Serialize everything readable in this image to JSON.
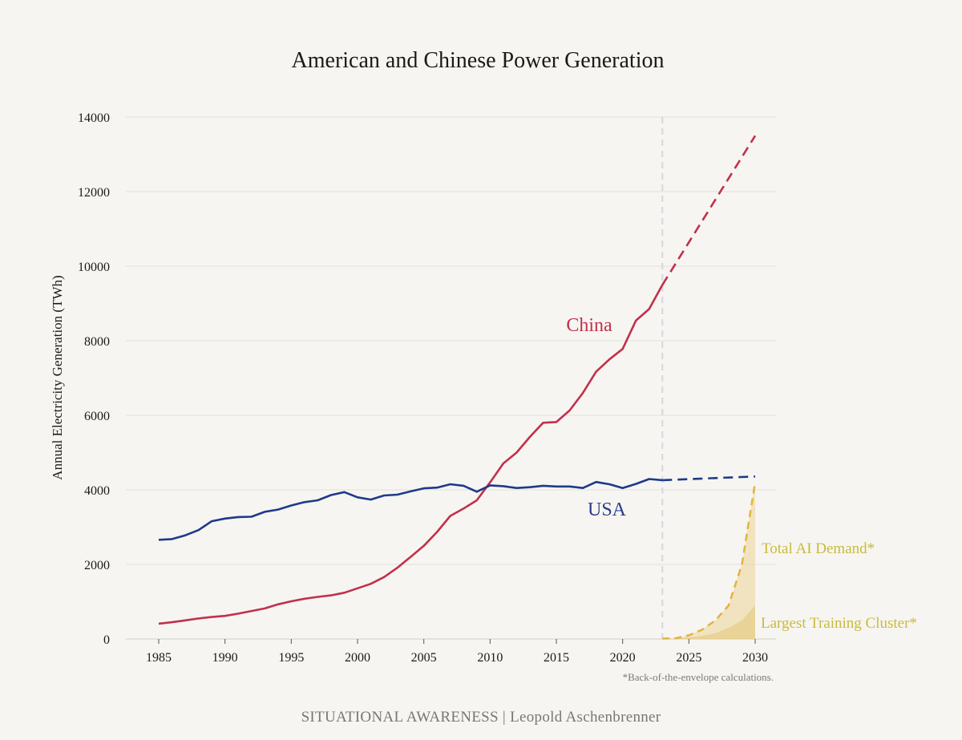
{
  "chart_data": {
    "type": "line",
    "title": "American and Chinese Power Generation",
    "ylabel": "Annual Electricity Generation (TWh)",
    "xlabel": "",
    "xlim": [
      1985,
      2030
    ],
    "ylim": [
      0,
      14000
    ],
    "xticks": [
      1985,
      1990,
      1995,
      2000,
      2005,
      2010,
      2015,
      2020,
      2025,
      2030
    ],
    "yticks": [
      0,
      2000,
      4000,
      6000,
      8000,
      10000,
      12000,
      14000
    ],
    "grid": "horizontal",
    "forecast_start": 2023,
    "series": [
      {
        "name": "China",
        "color": "#c2304b",
        "x": [
          1985,
          1986,
          1987,
          1988,
          1989,
          1990,
          1991,
          1992,
          1993,
          1994,
          1995,
          1996,
          1997,
          1998,
          1999,
          2000,
          2001,
          2002,
          2003,
          2004,
          2005,
          2006,
          2007,
          2008,
          2009,
          2010,
          2011,
          2012,
          2013,
          2014,
          2015,
          2016,
          2017,
          2018,
          2019,
          2020,
          2021,
          2022,
          2023
        ],
        "values": [
          410,
          450,
          500,
          550,
          590,
          620,
          680,
          750,
          820,
          930,
          1010,
          1080,
          1130,
          1170,
          1240,
          1360,
          1480,
          1660,
          1910,
          2200,
          2500,
          2870,
          3300,
          3500,
          3720,
          4200,
          4710,
          5000,
          5420,
          5800,
          5820,
          6130,
          6600,
          7170,
          7500,
          7780,
          8540,
          8850,
          9500
        ]
      },
      {
        "name": "China projection",
        "color": "#c2304b",
        "style": "dashed",
        "x": [
          2023,
          2030
        ],
        "values": [
          9500,
          13500
        ]
      },
      {
        "name": "USA",
        "color": "#1e3a8a",
        "x": [
          1985,
          1986,
          1987,
          1988,
          1989,
          1990,
          1991,
          1992,
          1993,
          1994,
          1995,
          1996,
          1997,
          1998,
          1999,
          2000,
          2001,
          2002,
          2003,
          2004,
          2005,
          2006,
          2007,
          2008,
          2009,
          2010,
          2011,
          2012,
          2013,
          2014,
          2015,
          2016,
          2017,
          2018,
          2019,
          2020,
          2021,
          2022,
          2023
        ],
        "values": [
          2660,
          2680,
          2780,
          2920,
          3160,
          3230,
          3270,
          3280,
          3410,
          3470,
          3580,
          3670,
          3720,
          3860,
          3940,
          3800,
          3740,
          3850,
          3870,
          3960,
          4040,
          4060,
          4150,
          4110,
          3950,
          4120,
          4100,
          4050,
          4070,
          4110,
          4090,
          4090,
          4050,
          4210,
          4150,
          4050,
          4160,
          4290,
          4260
        ]
      },
      {
        "name": "USA projection",
        "color": "#1e3a8a",
        "style": "dashed",
        "x": [
          2023,
          2030
        ],
        "values": [
          4260,
          4360
        ]
      },
      {
        "name": "Total AI Demand*",
        "color": "#e3b341",
        "style": "dashed-area",
        "x": [
          2023,
          2024,
          2025,
          2026,
          2027,
          2028,
          2029,
          2030
        ],
        "values": [
          10,
          20,
          100,
          250,
          500,
          900,
          2000,
          4200
        ]
      },
      {
        "name": "Largest Training Cluster*",
        "color": "#e3b341",
        "style": "area",
        "x": [
          2023,
          2024,
          2025,
          2026,
          2027,
          2028,
          2029,
          2030
        ],
        "values": [
          5,
          10,
          40,
          80,
          150,
          300,
          500,
          900
        ]
      }
    ],
    "annotations": {
      "china_label": "China",
      "usa_label": "USA",
      "ai_demand_label": "Total AI Demand*",
      "training_cluster_label": "Largest Training Cluster*",
      "footnote": "*Back-of-the-envelope calculations."
    }
  },
  "credit": "SITUATIONAL AWARENESS | Leopold Aschenbrenner"
}
